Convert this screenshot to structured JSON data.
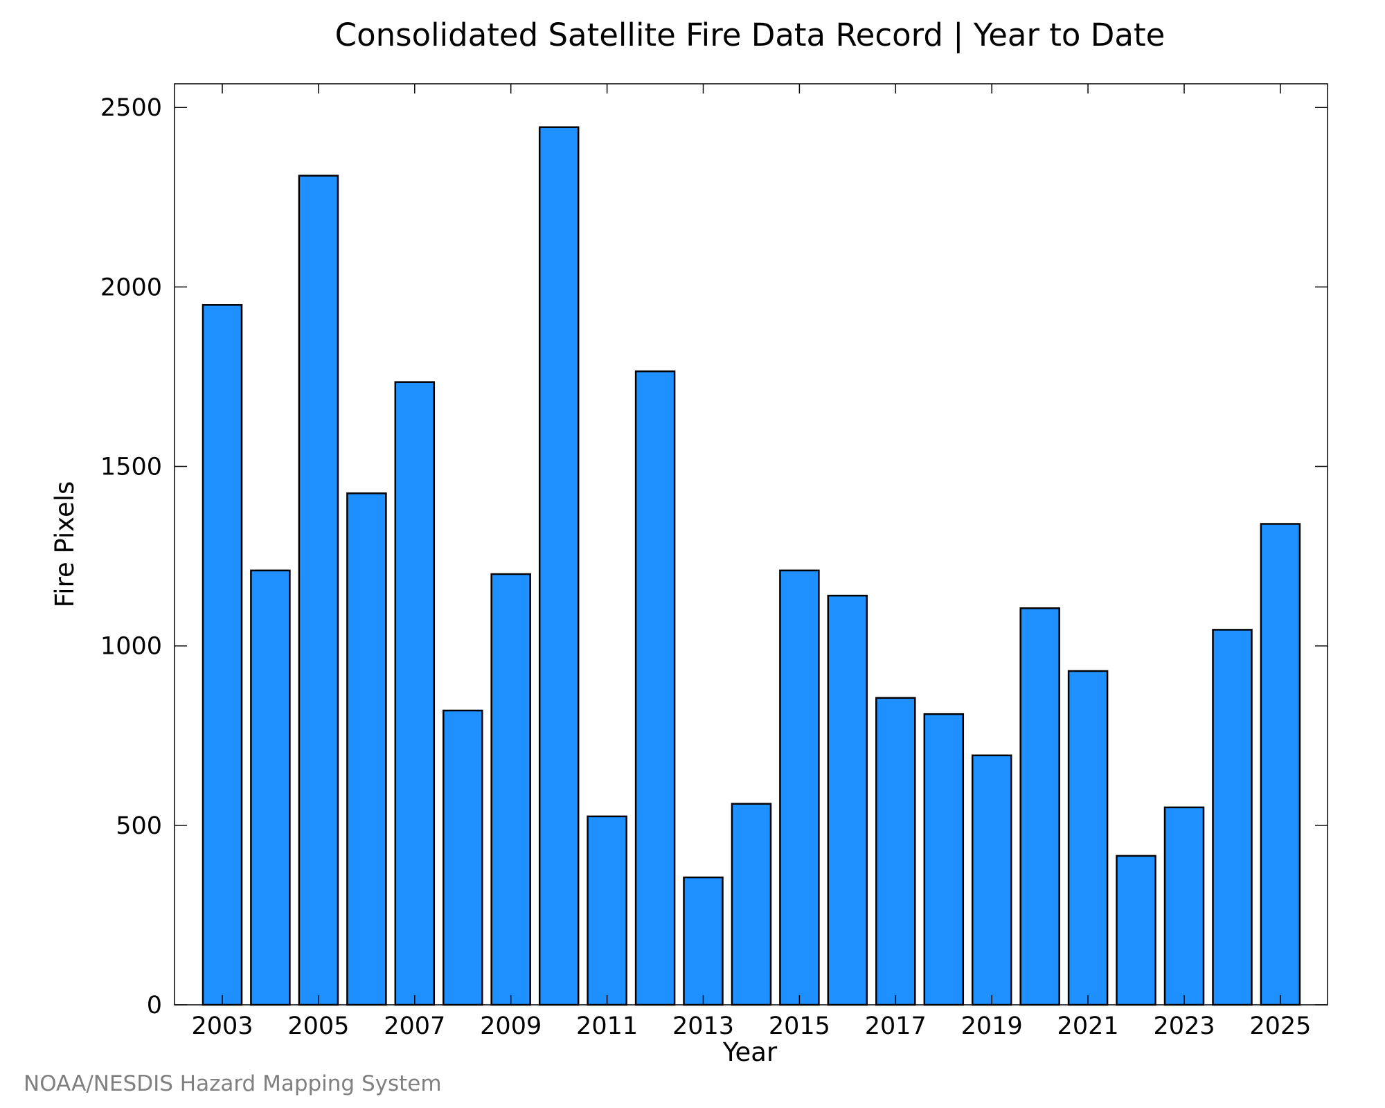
{
  "chart_data": {
    "type": "bar",
    "title": "Consolidated Satellite Fire Data Record | Year to Date",
    "xlabel": "Year",
    "ylabel": "Fire Pixels",
    "categories": [
      "2003",
      "2004",
      "2005",
      "2006",
      "2007",
      "2008",
      "2009",
      "2010",
      "2011",
      "2012",
      "2013",
      "2014",
      "2015",
      "2016",
      "2017",
      "2018",
      "2019",
      "2020",
      "2021",
      "2022",
      "2023",
      "2024",
      "2025"
    ],
    "values": [
      1950,
      1210,
      2310,
      1425,
      1735,
      820,
      1200,
      2445,
      525,
      1765,
      355,
      560,
      1210,
      1140,
      855,
      810,
      695,
      1105,
      930,
      415,
      550,
      1045,
      1340
    ],
    "x_tick_labels": [
      "2003",
      "2005",
      "2007",
      "2009",
      "2011",
      "2013",
      "2015",
      "2017",
      "2019",
      "2021",
      "2023",
      "2025"
    ],
    "y_ticks": [
      0,
      500,
      1000,
      1500,
      2000,
      2500
    ],
    "ylim": [
      0,
      2566
    ],
    "bar_color": "#1e90ff",
    "bar_edge_color": "#000000",
    "grid": false,
    "legend": "none"
  },
  "credit": "NOAA/NESDIS Hazard Mapping System"
}
